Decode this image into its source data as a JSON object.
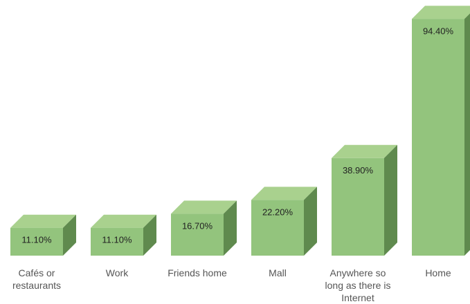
{
  "chart_data": {
    "type": "bar",
    "style": "3d",
    "categories": [
      "Cafés or restaurants",
      "Work",
      "Friends home",
      "Mall",
      "Anywhere so long as there is Internet",
      "Home"
    ],
    "category_lines": [
      [
        "Cafés or",
        "restaurants"
      ],
      [
        "Work"
      ],
      [
        "Friends home"
      ],
      [
        "Mall"
      ],
      [
        "Anywhere so",
        "long as there is",
        "Internet"
      ],
      [
        "Home"
      ]
    ],
    "values": [
      11.1,
      11.1,
      16.7,
      22.2,
      38.9,
      94.4
    ],
    "data_labels": [
      "11.10%",
      "11.10%",
      "16.70%",
      "22.20%",
      "38.90%",
      "94.40%"
    ],
    "ylim": [
      0,
      100
    ],
    "grid": false,
    "legend": "none",
    "colors": {
      "front": "#93c47d",
      "top": "#a9d18e",
      "side": "#5f8a4e",
      "label": "#222222",
      "axis_text": "#555555"
    }
  }
}
